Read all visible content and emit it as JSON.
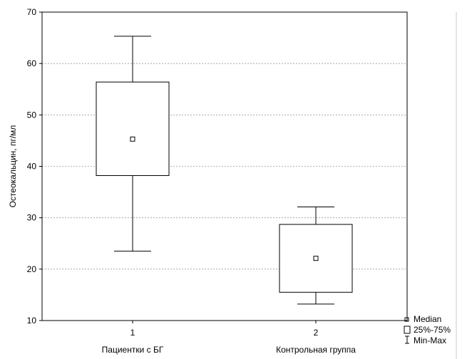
{
  "chart_data": {
    "type": "boxplot",
    "ylabel": "Остеокальцин, пг/мл",
    "xlabel": "",
    "ylim": [
      10,
      70
    ],
    "yticks": [
      10,
      20,
      30,
      40,
      50,
      60,
      70
    ],
    "grid": "horizontal-dashed",
    "categories": [
      {
        "tick": "1",
        "name": "Пациентки с БГ"
      },
      {
        "tick": "2",
        "name": "Контрольная группа"
      }
    ],
    "boxes": [
      {
        "median": 45.3,
        "q1": 38.2,
        "q3": 56.4,
        "min": 23.5,
        "max": 65.3
      },
      {
        "median": 22.1,
        "q1": 15.5,
        "q3": 28.7,
        "min": 13.2,
        "max": 32.1
      }
    ],
    "legend": {
      "position": "bottom-right",
      "items": [
        "Median",
        "25%-75%",
        "Min-Max"
      ]
    }
  }
}
